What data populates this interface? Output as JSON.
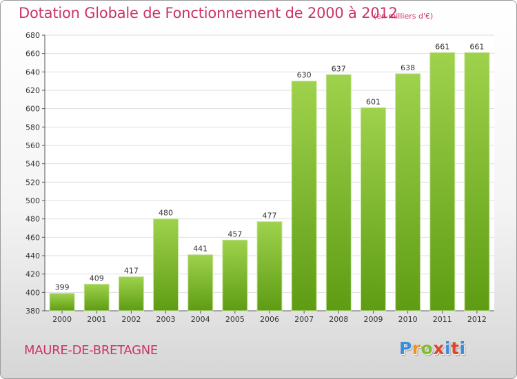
{
  "title": "Dotation Globale de Fonctionnement de 2000 à 2012",
  "subtitle": "(en milliers d'€)",
  "commune": "MAURE-DE-BRETAGNE",
  "brand": {
    "letters": [
      "P",
      "r",
      "o",
      "x",
      "i",
      "t",
      "i"
    ],
    "colors": [
      "#3a8ed9",
      "#e89423",
      "#7fbf2b",
      "#e0442c",
      "#3a8ed9",
      "#e0442c",
      "#3a8ed9"
    ]
  },
  "colors": {
    "bar_top": "#9fd24c",
    "bar_bottom": "#5e9c14",
    "text_accent": "#cc3366"
  },
  "chart_data": {
    "type": "bar",
    "categories": [
      "2000",
      "2001",
      "2002",
      "2003",
      "2004",
      "2005",
      "2006",
      "2007",
      "2008",
      "2009",
      "2010",
      "2011",
      "2012"
    ],
    "values": [
      399,
      409,
      417,
      480,
      441,
      457,
      477,
      630,
      637,
      601,
      638,
      661,
      661
    ],
    "ylim": [
      380,
      680
    ],
    "yticks": [
      380,
      400,
      420,
      440,
      460,
      480,
      500,
      520,
      540,
      560,
      580,
      600,
      620,
      640,
      660,
      680
    ],
    "grid": true,
    "xlabel": "",
    "ylabel": ""
  }
}
